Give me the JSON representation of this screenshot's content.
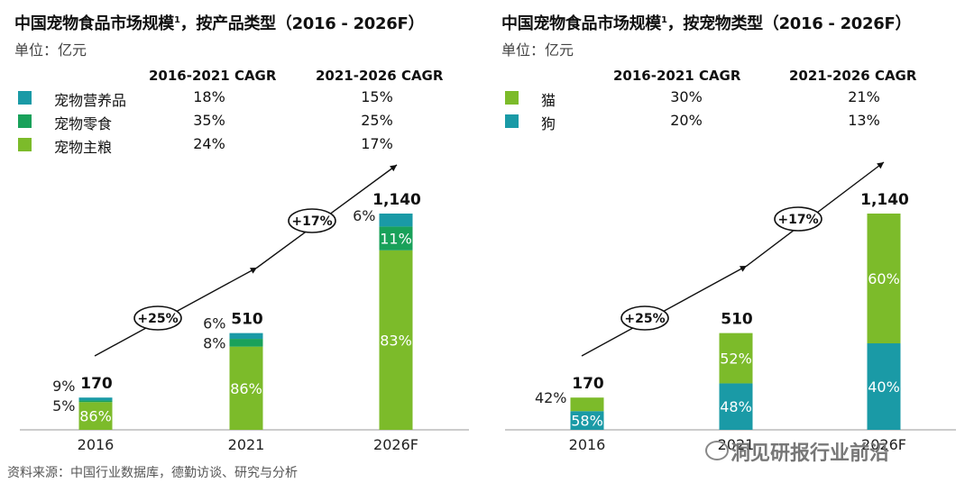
{
  "colors": {
    "nutrition": "#1a9aa6",
    "snack": "#19a15a",
    "staple": "#7cbb2a",
    "cat": "#7cbb2a",
    "dog": "#1a9aa6"
  },
  "left": {
    "title": "中国宠物食品市场规模",
    "title_sup": "1",
    "title_rest": "，按产品类型（2016 - 2026F）",
    "unit": "单位：亿元",
    "cagr_headers": [
      "2016-2021 CAGR",
      "2021-2026 CAGR"
    ],
    "legend": [
      {
        "label": "宠物营养品",
        "c1": "18%",
        "c2": "15%",
        "color_key": "nutrition"
      },
      {
        "label": "宠物零食",
        "c1": "35%",
        "c2": "25%",
        "color_key": "snack"
      },
      {
        "label": "宠物主粮",
        "c1": "24%",
        "c2": "17%",
        "color_key": "staple"
      }
    ]
  },
  "right": {
    "title": "中国宠物食品市场规模",
    "title_sup": "1",
    "title_rest": "，按宠物类型（2016 - 2026F）",
    "unit": "单位：亿元",
    "cagr_headers": [
      "2016-2021 CAGR",
      "2021-2026 CAGR"
    ],
    "legend": [
      {
        "label": "猫",
        "c1": "30%",
        "c2": "21%",
        "color_key": "cat"
      },
      {
        "label": "狗",
        "c1": "20%",
        "c2": "13%",
        "color_key": "dog"
      }
    ]
  },
  "footer": {
    "source": "资料来源：中国行业数据库，德勤访谈、研究与分析",
    "watermark": "洞见研报行业前沿"
  },
  "chart_data": [
    {
      "type": "bar",
      "stacked": true,
      "title": "中国宠物食品市场规模，按产品类型（2016 - 2026F）",
      "ylabel": "亿元",
      "categories": [
        "2016",
        "2021",
        "2026F"
      ],
      "totals": [
        170,
        510,
        1140
      ],
      "total_labels": [
        "170",
        "510",
        "1,140"
      ],
      "series": [
        {
          "name": "宠物主粮",
          "color_key": "staple",
          "shares": [
            86,
            86,
            83
          ]
        },
        {
          "name": "宠物零食",
          "color_key": "snack",
          "shares": [
            5,
            8,
            11
          ]
        },
        {
          "name": "宠物营养品",
          "color_key": "nutrition",
          "shares": [
            9,
            6,
            6
          ]
        }
      ],
      "growth_annotations": [
        "+25%",
        "+17%"
      ]
    },
    {
      "type": "bar",
      "stacked": true,
      "title": "中国宠物食品市场规模，按宠物类型（2016 - 2026F）",
      "ylabel": "亿元",
      "categories": [
        "2016",
        "2021",
        "2026F"
      ],
      "totals": [
        170,
        510,
        1140
      ],
      "total_labels": [
        "170",
        "510",
        "1,140"
      ],
      "series": [
        {
          "name": "狗",
          "color_key": "dog",
          "shares": [
            58,
            48,
            40
          ]
        },
        {
          "name": "猫",
          "color_key": "cat",
          "shares": [
            42,
            52,
            60
          ]
        }
      ],
      "growth_annotations": [
        "+25%",
        "+17%"
      ]
    }
  ]
}
